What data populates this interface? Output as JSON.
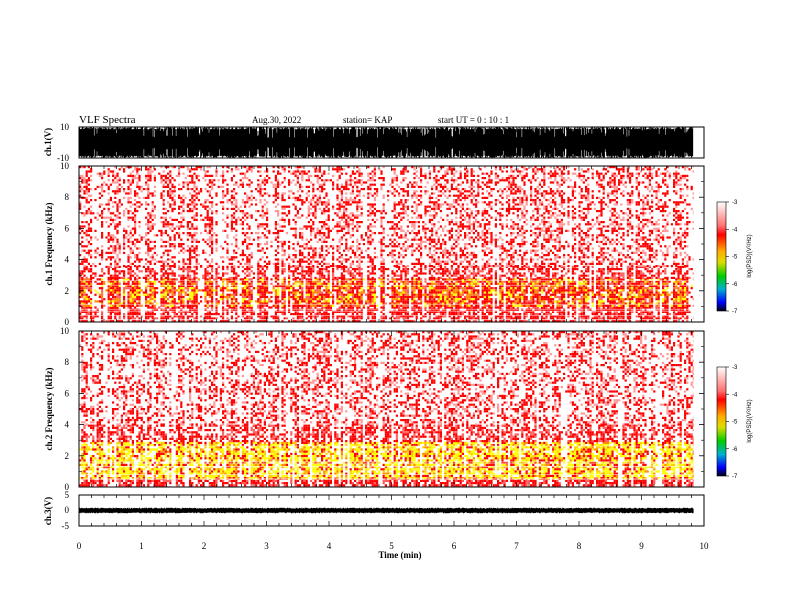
{
  "header": {
    "title": "VLF Spectra",
    "date": "Aug.30, 2022",
    "station": "station= KAP",
    "start": "start  UT =   0  : 10 : 1"
  },
  "chart_data": [
    {
      "type": "line",
      "name": "waveform-ch1",
      "ylabel": "ch.1(V)",
      "ylim": [
        -10,
        10
      ],
      "yticks": [
        "10",
        "-10"
      ],
      "xlim": [
        0,
        10
      ],
      "x_end": 9.83,
      "style": "saturated black waveform spanning full range"
    },
    {
      "type": "heatmap",
      "name": "spectrogram-ch1",
      "ylabel": "ch.1  Frequency  (kHz)",
      "ylim": [
        0,
        10
      ],
      "yticks": [
        "0",
        "2",
        "4",
        "6",
        "8",
        "10"
      ],
      "xlim": [
        0,
        10
      ],
      "x_end": 9.83,
      "bands": [
        {
          "from": 0.0,
          "to": 1.0,
          "level": "high"
        },
        {
          "from": 1.0,
          "to": 2.8,
          "level": "peak"
        },
        {
          "from": 2.8,
          "to": 3.6,
          "level": "mid"
        },
        {
          "from": 3.6,
          "to": 10.0,
          "level": "sparse"
        }
      ],
      "colorbar": {
        "label": "log(PSD)(V²/Hz)",
        "range": [
          -7,
          -3
        ],
        "ticks": [
          "-3",
          "-4",
          "-5",
          "-6",
          "-7"
        ]
      }
    },
    {
      "type": "heatmap",
      "name": "spectrogram-ch2",
      "ylabel": "ch.2  Frequency  (kHz)",
      "ylim": [
        0,
        10
      ],
      "yticks": [
        "0",
        "2",
        "4",
        "6",
        "8",
        "10"
      ],
      "xlim": [
        0,
        10
      ],
      "x_end": 9.83,
      "bands": [
        {
          "from": 0.0,
          "to": 0.6,
          "level": "high"
        },
        {
          "from": 0.6,
          "to": 2.9,
          "level": "peak-strong"
        },
        {
          "from": 2.9,
          "to": 4.0,
          "level": "mid"
        },
        {
          "from": 4.0,
          "to": 10.0,
          "level": "sparse"
        }
      ],
      "colorbar": {
        "label": "log(PSD)(V²/Hz)",
        "range": [
          -7,
          -3
        ],
        "ticks": [
          "-3",
          "-4",
          "-5",
          "-6",
          "-7"
        ]
      }
    },
    {
      "type": "line",
      "name": "waveform-ch3",
      "ylabel": "ch.3(V)",
      "ylim": [
        -5,
        5
      ],
      "yticks": [
        "5",
        "0",
        "-5"
      ],
      "xlim": [
        0,
        10
      ],
      "x_end": 9.83,
      "band": [
        -0.6,
        0.6
      ],
      "xlabel": "Time  (min)",
      "xticks": [
        "0",
        "1",
        "2",
        "3",
        "4",
        "5",
        "6",
        "7",
        "8",
        "9",
        "10"
      ]
    }
  ],
  "colors": {
    "axis": "#000000",
    "spec_red": "#ff0000",
    "spec_yellow": "#ffff00",
    "spec_orange": "#ff8c00"
  }
}
